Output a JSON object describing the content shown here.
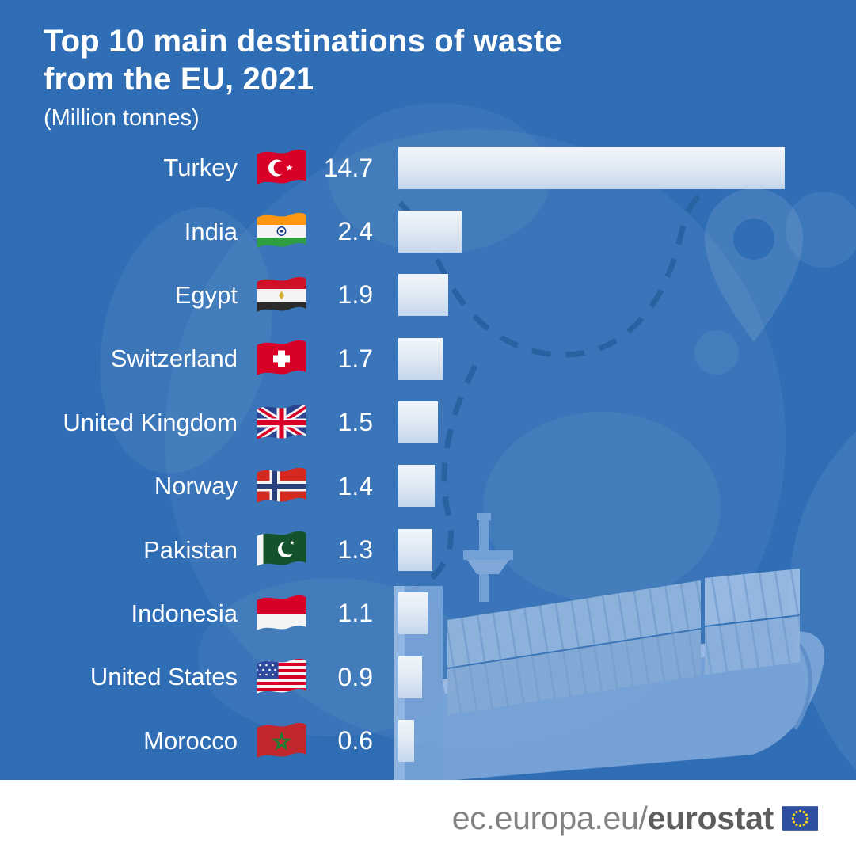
{
  "page": {
    "background_color": "#2f6eb5",
    "accent_bar_top": "#f0f5fa",
    "accent_bar_bottom": "#c5d6ec"
  },
  "title": {
    "line1": "Top 10 main destinations of waste",
    "line2": "from the EU, 2021",
    "unit_label": "(Million tonnes)"
  },
  "chart_data": {
    "type": "bar",
    "orientation": "horizontal",
    "title": "Top 10 main destinations of waste from the EU, 2021",
    "unit": "Million tonnes",
    "categories": [
      "Turkey",
      "India",
      "Egypt",
      "Switzerland",
      "United Kingdom",
      "Norway",
      "Pakistan",
      "Indonesia",
      "United States",
      "Morocco"
    ],
    "values": [
      14.7,
      2.4,
      1.9,
      1.7,
      1.5,
      1.4,
      1.3,
      1.1,
      0.9,
      0.6
    ],
    "value_labels": [
      "14.7",
      "2.4",
      "1.9",
      "1.7",
      "1.5",
      "1.4",
      "1.3",
      "1.1",
      "0.9",
      "0.6"
    ],
    "xlim": [
      0,
      15
    ],
    "grid": false,
    "legend": false,
    "bar_gradient": [
      "#f0f5fa",
      "#c5d6ec"
    ]
  },
  "icons": {
    "flags": [
      "turkey-flag-icon",
      "india-flag-icon",
      "egypt-flag-icon",
      "switzerland-flag-icon",
      "united-kingdom-flag-icon",
      "norway-flag-icon",
      "pakistan-flag-icon",
      "indonesia-flag-icon",
      "united-states-flag-icon",
      "morocco-flag-icon"
    ],
    "eu_flag": "eu-flag-icon",
    "ship": "container-ship-illustration",
    "globe": "globe-decoration",
    "route": "dashed-route-decoration"
  },
  "footer": {
    "url_prefix": "ec.europa.eu/",
    "url_bold": "eurostat",
    "eu_flag_field_color": "#2e4ea0",
    "eu_flag_star_color": "#ffd617"
  }
}
